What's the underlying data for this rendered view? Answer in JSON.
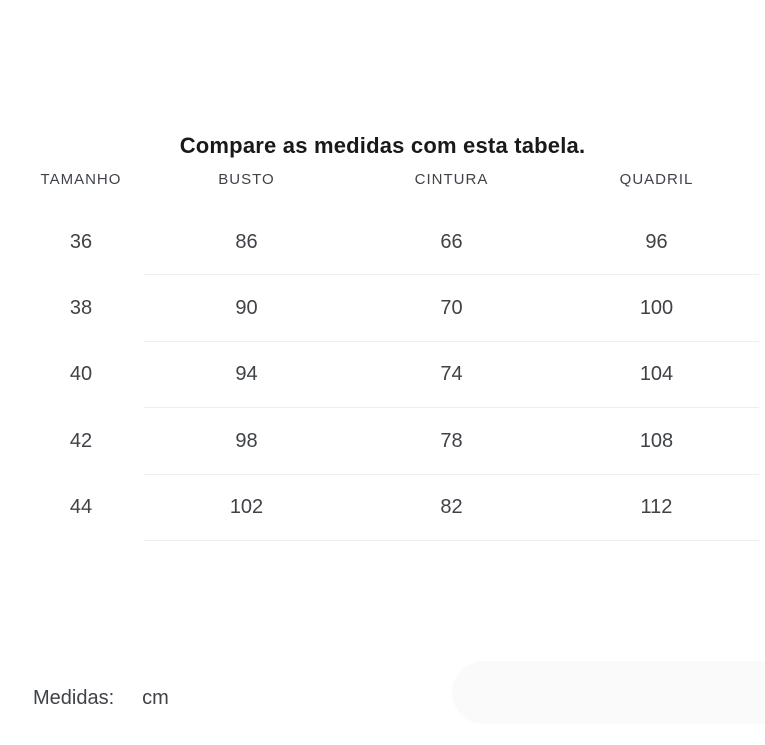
{
  "title": "Compare as medidas com esta tabela.",
  "table": {
    "columns": [
      "TAMANHO",
      "BUSTO",
      "CINTURA",
      "QUADRIL"
    ],
    "rows": [
      [
        "36",
        "86",
        "66",
        "96"
      ],
      [
        "38",
        "90",
        "70",
        "100"
      ],
      [
        "40",
        "94",
        "74",
        "104"
      ],
      [
        "42",
        "98",
        "78",
        "108"
      ],
      [
        "44",
        "102",
        "82",
        "112"
      ]
    ]
  },
  "footer": {
    "label": "Medidas:",
    "unit": "cm"
  },
  "colors": {
    "title_text": "#191919",
    "body_text": "#3f4246",
    "header_text": "#3e434a",
    "divider": "#eeeeee",
    "pill": "#fafafa",
    "background": "#ffffff"
  }
}
